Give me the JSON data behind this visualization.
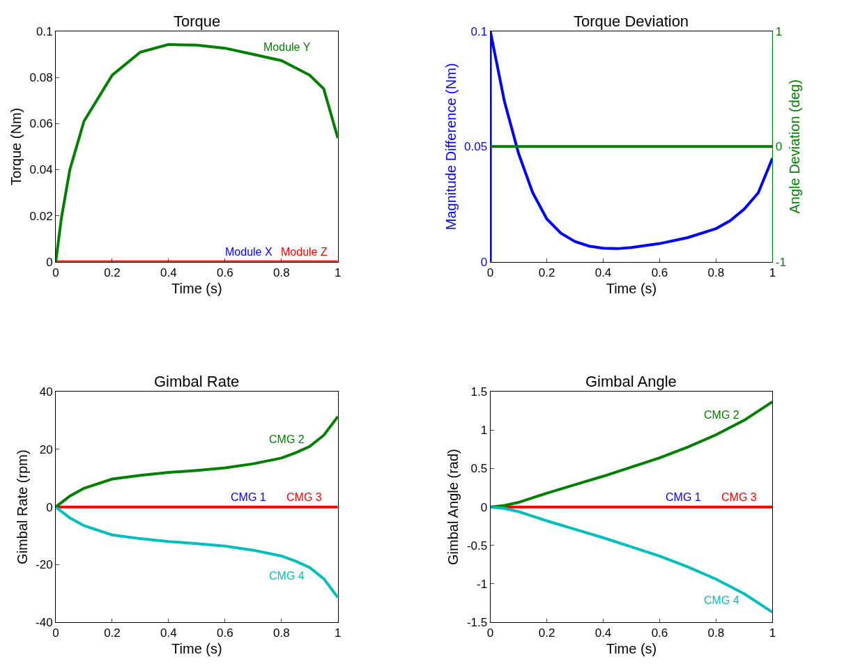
{
  "chart_data": [
    {
      "type": "line",
      "title": "Torque",
      "xlabel": "Time (s)",
      "ylabel": "Torque (Nm)",
      "x": [
        0,
        0.02,
        0.05,
        0.1,
        0.2,
        0.3,
        0.4,
        0.5,
        0.6,
        0.7,
        0.8,
        0.9,
        0.95,
        1
      ],
      "xlim": [
        0,
        1
      ],
      "xticks": [
        0,
        0.2,
        0.4,
        0.6,
        0.8,
        1
      ],
      "ylim": [
        0,
        0.1
      ],
      "yticks": [
        0,
        0.02,
        0.04,
        0.06,
        0.08,
        0.1
      ],
      "grid": false,
      "series": [
        {
          "name": "Module X",
          "color": "#0000ff",
          "values": [
            null,
            null,
            null,
            null,
            null,
            null,
            null,
            null,
            null,
            null,
            null,
            null,
            null,
            null
          ]
        },
        {
          "name": "Module Z",
          "color": "#ff0000",
          "values": [
            0,
            0,
            0,
            0,
            0,
            0,
            0,
            0,
            0,
            0,
            0,
            0,
            0,
            0
          ]
        },
        {
          "name": "Module Y",
          "color": "#008000",
          "values": [
            0,
            0.019,
            0.04,
            0.061,
            0.081,
            0.091,
            0.0943,
            0.094,
            0.0927,
            0.09,
            0.0873,
            0.081,
            0.075,
            0.0537
          ]
        }
      ]
    },
    {
      "type": "line",
      "title": "Torque Deviation",
      "xlabel": "Time (s)",
      "ylabel": "Magnitude Difference (Nm)",
      "y2label": "Angle Deviation (deg)",
      "xlim": [
        0,
        1
      ],
      "xticks": [
        0,
        0.2,
        0.4,
        0.6,
        0.8,
        1
      ],
      "ylim": [
        0,
        0.1
      ],
      "yticks": [
        0,
        0.05,
        0.1
      ],
      "y2lim": [
        -1,
        1
      ],
      "y2ticks": [
        -1,
        0,
        1
      ],
      "grid": false,
      "series": [
        {
          "color": "#0000ff",
          "x": [
            0,
            0,
            0.05,
            0.1,
            0.15,
            0.2,
            0.25,
            0.3,
            0.35,
            0.4,
            0.45,
            0.5,
            0.6,
            0.7,
            0.8,
            0.85,
            0.9,
            0.95,
            1
          ],
          "values": [
            0,
            0.1,
            0.0695,
            0.047,
            0.03,
            0.0186,
            0.0124,
            0.0088,
            0.0068,
            0.0059,
            0.0057,
            0.0062,
            0.0079,
            0.0105,
            0.0144,
            0.0178,
            0.0229,
            0.03,
            0.045
          ]
        },
        {
          "color": "#008000",
          "axis": "y2",
          "x": [
            0,
            1
          ],
          "values": [
            0,
            0
          ]
        }
      ]
    },
    {
      "type": "line",
      "title": "Gimbal Rate",
      "xlabel": "Time (s)",
      "ylabel": "Gimbal Rate (rpm)",
      "x": [
        0,
        0.05,
        0.1,
        0.2,
        0.3,
        0.4,
        0.5,
        0.6,
        0.7,
        0.8,
        0.85,
        0.9,
        0.95,
        1
      ],
      "xlim": [
        0,
        1
      ],
      "xticks": [
        0,
        0.2,
        0.4,
        0.6,
        0.8,
        1
      ],
      "ylim": [
        -40,
        40
      ],
      "yticks": [
        -40,
        -20,
        0,
        20,
        40
      ],
      "grid": false,
      "series": [
        {
          "name": "CMG 1",
          "color": "#0000ff",
          "values": [
            null,
            null,
            null,
            null,
            null,
            null,
            null,
            null,
            null,
            null,
            null,
            null,
            null,
            null
          ]
        },
        {
          "name": "CMG 3",
          "color": "#ff0000",
          "values": [
            0,
            0,
            0,
            0,
            0,
            0,
            0,
            0,
            0,
            0,
            0,
            0,
            0,
            0
          ]
        },
        {
          "name": "CMG 2",
          "color": "#008000",
          "values": [
            0,
            3.8,
            6.5,
            9.7,
            11,
            12,
            12.7,
            13.6,
            15,
            17,
            18.8,
            21,
            24.9,
            31.4
          ]
        },
        {
          "name": "CMG 4",
          "color": "#00bfbf",
          "values": [
            0,
            -3.8,
            -6.5,
            -9.7,
            -11,
            -12,
            -12.7,
            -13.6,
            -15,
            -17,
            -18.8,
            -21,
            -24.9,
            -31.4
          ]
        }
      ]
    },
    {
      "type": "line",
      "title": "Gimbal Angle",
      "xlabel": "Time (s)",
      "ylabel": "Gimbal Angle (rad)",
      "x": [
        0,
        0.05,
        0.1,
        0.2,
        0.3,
        0.4,
        0.5,
        0.6,
        0.7,
        0.8,
        0.9,
        1
      ],
      "xlim": [
        0,
        1
      ],
      "xticks": [
        0,
        0.2,
        0.4,
        0.6,
        0.8,
        1
      ],
      "ylim": [
        -1.5,
        1.5
      ],
      "yticks": [
        -1.5,
        -1,
        -0.5,
        0,
        0.5,
        1,
        1.5
      ],
      "grid": false,
      "series": [
        {
          "name": "CMG 1",
          "color": "#0000ff",
          "values": [
            null,
            null,
            null,
            null,
            null,
            null,
            null,
            null,
            null,
            null,
            null,
            null
          ]
        },
        {
          "name": "CMG 3",
          "color": "#ff0000",
          "values": [
            0,
            0,
            0,
            0,
            0,
            0,
            0,
            0,
            0,
            0,
            0,
            0
          ]
        },
        {
          "name": "CMG 2",
          "color": "#008000",
          "values": [
            0,
            0.02,
            0.06,
            0.18,
            0.29,
            0.4,
            0.52,
            0.64,
            0.78,
            0.94,
            1.13,
            1.37
          ]
        },
        {
          "name": "CMG 4",
          "color": "#00bfbf",
          "values": [
            0,
            -0.02,
            -0.06,
            -0.18,
            -0.29,
            -0.4,
            -0.52,
            -0.64,
            -0.78,
            -0.94,
            -1.13,
            -1.37
          ]
        }
      ]
    }
  ]
}
